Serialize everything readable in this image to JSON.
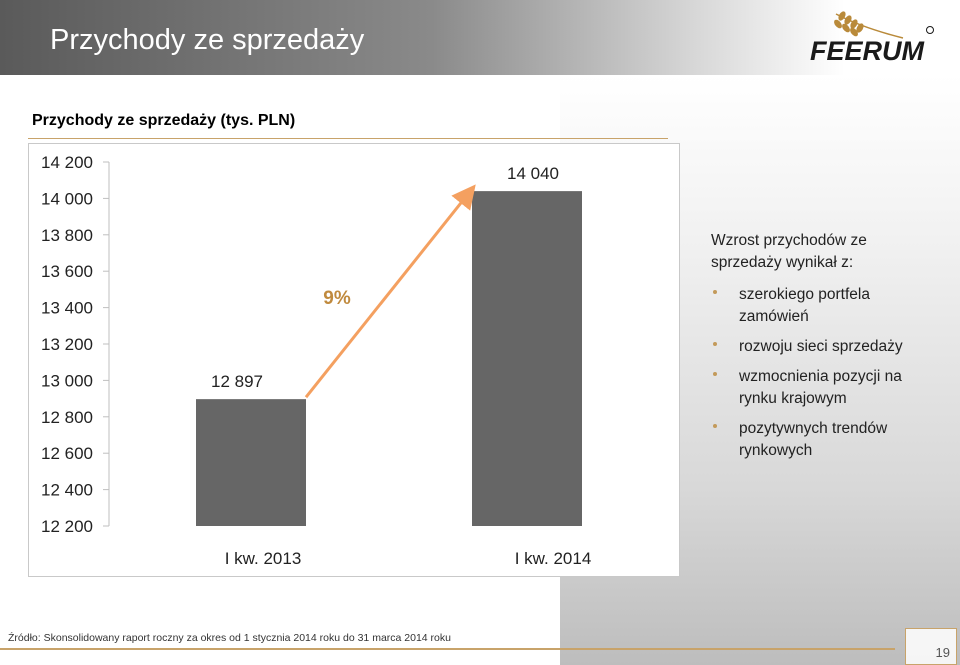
{
  "header": {
    "title": "Przychody ze sprzedaży",
    "logo_text": "FEERUM"
  },
  "chart_data": {
    "type": "bar",
    "title": "Przychody ze sprzedaży (tys. PLN)",
    "categories": [
      "I kw. 2013",
      "I kw. 2014"
    ],
    "values": [
      12897,
      14040
    ],
    "value_labels": [
      "12 897",
      "14 040"
    ],
    "ylim": [
      12200,
      14200
    ],
    "y_ticks": [
      12200,
      12400,
      12600,
      12800,
      13000,
      13200,
      13400,
      13600,
      13800,
      14000,
      14200
    ],
    "y_tick_labels": [
      "12 200",
      "12 400",
      "12 600",
      "12 800",
      "13 000",
      "13 200",
      "13 400",
      "13 600",
      "13 800",
      "14 000",
      "14 200"
    ],
    "growth_label": "9%",
    "bar_color": "#666666",
    "arrow_color": "#f4a060",
    "growth_color": "#c08a3e"
  },
  "side_panel": {
    "intro": "Wzrost przychodów ze sprzedaży wynikał z:",
    "bullets": [
      "szerokiego portfela zamówień",
      "rozwoju sieci sprzedaży",
      "wzmocnienia pozycji na rynku krajowym",
      "pozytywnych trendów rynkowych"
    ]
  },
  "footer": {
    "source": "Źródło: Skonsolidowany raport  roczny za okres od 1 stycznia 2014 roku do 31 marca 2014 roku",
    "page_number": "19"
  }
}
